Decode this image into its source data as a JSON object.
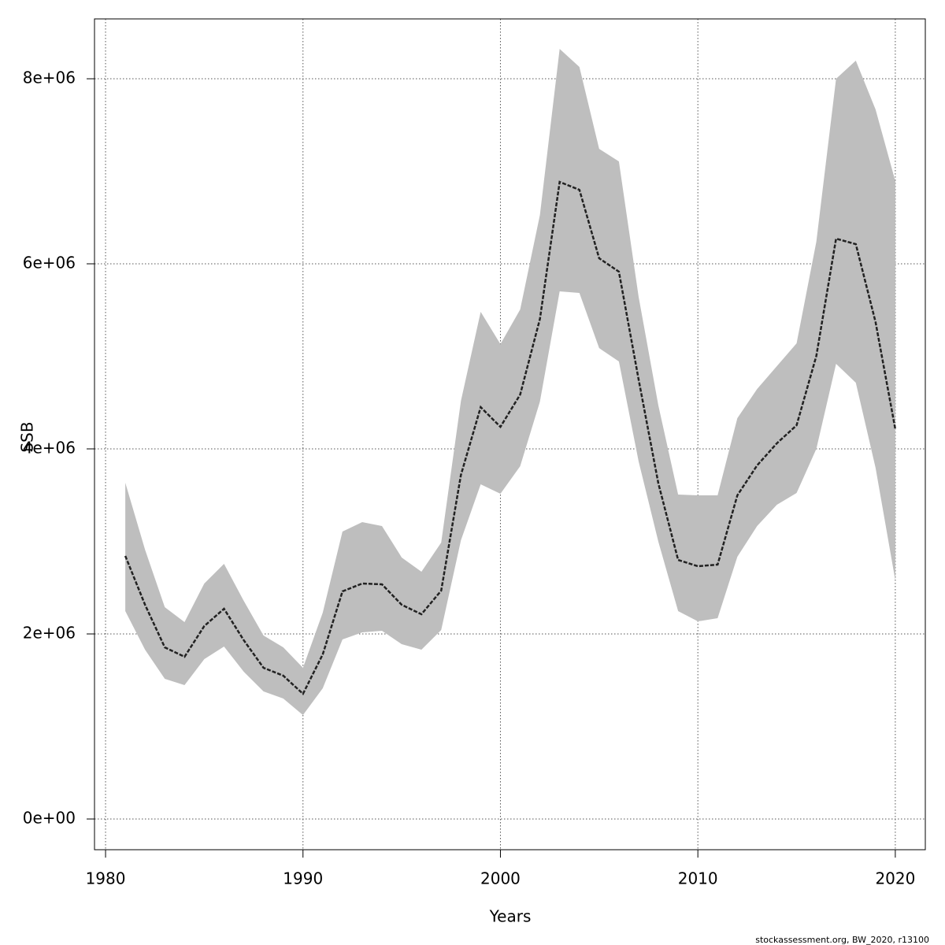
{
  "chart_data": {
    "type": "line",
    "xlabel": "Years",
    "ylabel": "SSB",
    "footnote": "stockassessment.org, BW_2020, r13100",
    "x": [
      1981,
      1982,
      1983,
      1984,
      1985,
      1986,
      1987,
      1988,
      1989,
      1990,
      1991,
      1992,
      1993,
      1994,
      1995,
      1996,
      1997,
      1998,
      1999,
      2000,
      2001,
      2002,
      2003,
      2004,
      2005,
      2006,
      2007,
      2008,
      2009,
      2010,
      2011,
      2012,
      2013,
      2014,
      2015,
      2016,
      2017,
      2018,
      2019,
      2020
    ],
    "series": [
      {
        "color": "#222222",
        "band_color": "#bebebe",
        "values": [
          2843000,
          2315000,
          1855000,
          1753000,
          2085000,
          2272000,
          1932000,
          1634000,
          1549000,
          1353000,
          1779000,
          2460000,
          2545000,
          2536000,
          2315000,
          2213000,
          2468000,
          3719000,
          4451000,
          4238000,
          4587000,
          5404000,
          6885000,
          6800000,
          6060000,
          5915000,
          4749000,
          3626000,
          2800000,
          2732000,
          2749000,
          3498000,
          3821000,
          4060000,
          4255000,
          5004000,
          6272000,
          6213000,
          5370000,
          4213000
        ],
        "upper": [
          3634000,
          2911000,
          2289000,
          2128000,
          2545000,
          2757000,
          2357000,
          1983000,
          1855000,
          1634000,
          2230000,
          3106000,
          3209000,
          3166000,
          2826000,
          2672000,
          2987000,
          4519000,
          5481000,
          5132000,
          5506000,
          6528000,
          8323000,
          8128000,
          7243000,
          7106000,
          5643000,
          4468000,
          3506000,
          3498000,
          3498000,
          4332000,
          4647000,
          4894000,
          5140000,
          6238000,
          8000000,
          8196000,
          7668000,
          6894000
        ],
        "lower": [
          2247000,
          1830000,
          1515000,
          1447000,
          1728000,
          1864000,
          1591000,
          1379000,
          1302000,
          1123000,
          1413000,
          1940000,
          2017000,
          2034000,
          1889000,
          1830000,
          2043000,
          3013000,
          3617000,
          3515000,
          3813000,
          4511000,
          5702000,
          5685000,
          5089000,
          4945000,
          3864000,
          2996000,
          2247000,
          2136000,
          2170000,
          2834000,
          3166000,
          3396000,
          3523000,
          4000000,
          4919000,
          4715000,
          3796000,
          2579000
        ]
      }
    ],
    "xlim": [
      1979.44,
      2021.52
    ],
    "xticks": [
      1980,
      1990,
      2000,
      2010,
      2020
    ],
    "ylim": [
      -332000,
      8647000
    ],
    "yticks": [
      {
        "value": 0,
        "label": "0e+00"
      },
      {
        "value": 2000000,
        "label": "2e+06"
      },
      {
        "value": 4000000,
        "label": "4e+06"
      },
      {
        "value": 6000000,
        "label": "6e+06"
      },
      {
        "value": 8000000,
        "label": "8e+06"
      }
    ],
    "grid": true
  }
}
